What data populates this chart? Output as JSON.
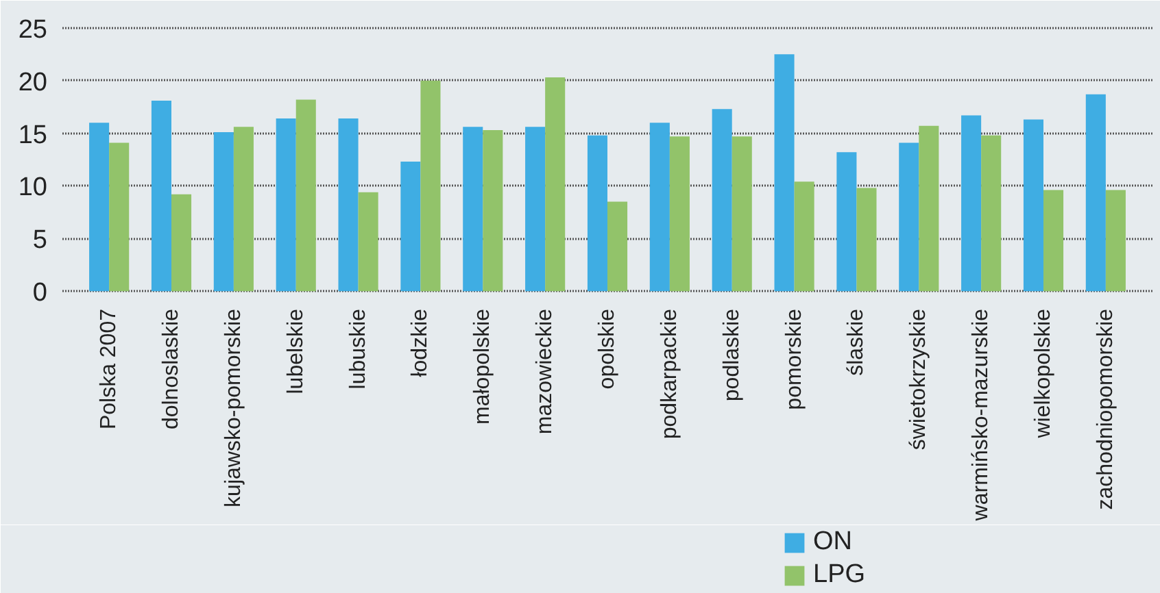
{
  "chart_data": {
    "type": "bar",
    "categories": [
      "Polska 2007",
      "dolnoslaskie",
      "kujawsko-pomorskie",
      "lubelskie",
      "lubuskie",
      "łodzkie",
      "małopolskie",
      "mazowieckie",
      "opolskie",
      "podkarpackie",
      "podlaskie",
      "pomorskie",
      "ślaskie",
      "świetokrzyskie",
      "warmińsko-mazurskie",
      "wielkopolskie",
      "zachodniopomorskie"
    ],
    "series": [
      {
        "name": "ON",
        "color": "#3fade3",
        "values": [
          16.0,
          18.1,
          15.1,
          16.4,
          16.4,
          12.3,
          15.6,
          15.6,
          14.8,
          16.0,
          17.3,
          22.5,
          13.2,
          14.1,
          16.7,
          16.3,
          18.7
        ]
      },
      {
        "name": "LPG",
        "color": "#92c36a",
        "values": [
          14.1,
          9.2,
          15.6,
          18.2,
          9.4,
          20.0,
          15.3,
          20.3,
          8.5,
          14.7,
          14.7,
          10.4,
          9.8,
          15.7,
          14.8,
          9.6,
          9.6
        ]
      }
    ],
    "ylim": [
      0,
      25
    ],
    "yticks": [
      0,
      5,
      10,
      15,
      20,
      25
    ],
    "grid": "y",
    "legend": "bottom"
  }
}
